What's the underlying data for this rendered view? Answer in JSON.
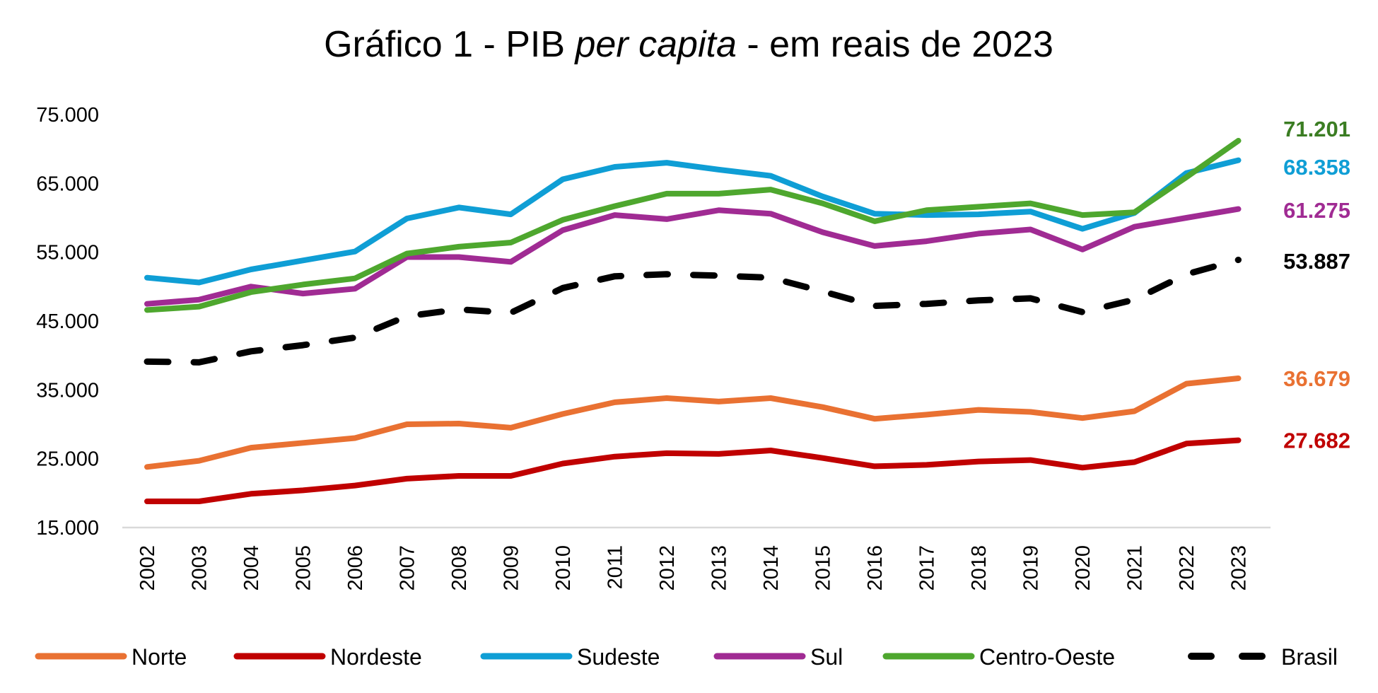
{
  "chart_data": {
    "type": "line",
    "title_parts": [
      {
        "text": "Gráfico 1 - PIB ",
        "italic": false
      },
      {
        "text": "per capita",
        "italic": true
      },
      {
        "text": " - em reais de 2023",
        "italic": false
      }
    ],
    "title": "Gráfico 1 - PIB per capita - em reais de 2023",
    "xlabel": "",
    "ylabel": "",
    "ylim": [
      15000,
      75000
    ],
    "yticks": [
      15000,
      25000,
      35000,
      45000,
      55000,
      65000,
      75000
    ],
    "ytick_labels": [
      "15.000",
      "25.000",
      "35.000",
      "45.000",
      "55.000",
      "65.000",
      "75.000"
    ],
    "grid": false,
    "legend_position": "bottom",
    "x": [
      "2002",
      "2003",
      "2004",
      "2005",
      "2006",
      "2007",
      "2008",
      "2009",
      "2010",
      "2011",
      "2012",
      "2013",
      "2014",
      "2015",
      "2016",
      "2017",
      "2018",
      "2019",
      "2020",
      "2021",
      "2022",
      "2023"
    ],
    "series": [
      {
        "name": "Norte",
        "color": "#E97132",
        "label_color": "#E97132",
        "dashed": false,
        "end_label": "36.679",
        "values": [
          23800,
          24700,
          26600,
          27300,
          28000,
          30000,
          30100,
          29500,
          31500,
          33200,
          33800,
          33300,
          33800,
          32500,
          30800,
          31400,
          32100,
          31800,
          30900,
          31900,
          35900,
          36679
        ]
      },
      {
        "name": "Nordeste",
        "color": "#C00000",
        "label_color": "#C00000",
        "dashed": false,
        "end_label": "27.682",
        "values": [
          18800,
          18800,
          19900,
          20400,
          21100,
          22100,
          22500,
          22500,
          24300,
          25300,
          25800,
          25700,
          26200,
          25100,
          23900,
          24100,
          24600,
          24800,
          23700,
          24500,
          27200,
          27682
        ]
      },
      {
        "name": "Sudeste",
        "color": "#0F9ED5",
        "label_color": "#0F9ED5",
        "dashed": false,
        "end_label": "68.358",
        "values": [
          51300,
          50600,
          52500,
          53800,
          55100,
          59900,
          61500,
          60500,
          65600,
          67400,
          68000,
          67000,
          66100,
          63100,
          60600,
          60400,
          60500,
          60900,
          58400,
          60700,
          66500,
          68358
        ]
      },
      {
        "name": "Sul",
        "color": "#A02B93",
        "label_color": "#A02B93",
        "dashed": false,
        "end_label": "61.275",
        "values": [
          47500,
          48100,
          50000,
          49000,
          49700,
          54300,
          54300,
          53600,
          58200,
          60400,
          59800,
          61100,
          60600,
          57900,
          55900,
          56600,
          57700,
          58300,
          55400,
          58700,
          60000,
          61275
        ]
      },
      {
        "name": "Centro-Oeste",
        "color": "#4EA72E",
        "label_color": "#3B7D23",
        "dashed": false,
        "end_label": "71.201",
        "values": [
          46600,
          47100,
          49200,
          50300,
          51200,
          54800,
          55800,
          56400,
          59700,
          61700,
          63500,
          63500,
          64100,
          62100,
          59500,
          61100,
          61600,
          62100,
          60400,
          60800,
          65900,
          71201
        ]
      },
      {
        "name": "Brasil",
        "color": "#000000",
        "label_color": "#000000",
        "dashed": true,
        "end_label": "53.887",
        "values": [
          39100,
          39000,
          40600,
          41500,
          42600,
          45700,
          46700,
          46200,
          49800,
          51500,
          51800,
          51600,
          51300,
          49300,
          47200,
          47500,
          48000,
          48300,
          46300,
          48100,
          51800,
          53887
        ]
      }
    ]
  }
}
